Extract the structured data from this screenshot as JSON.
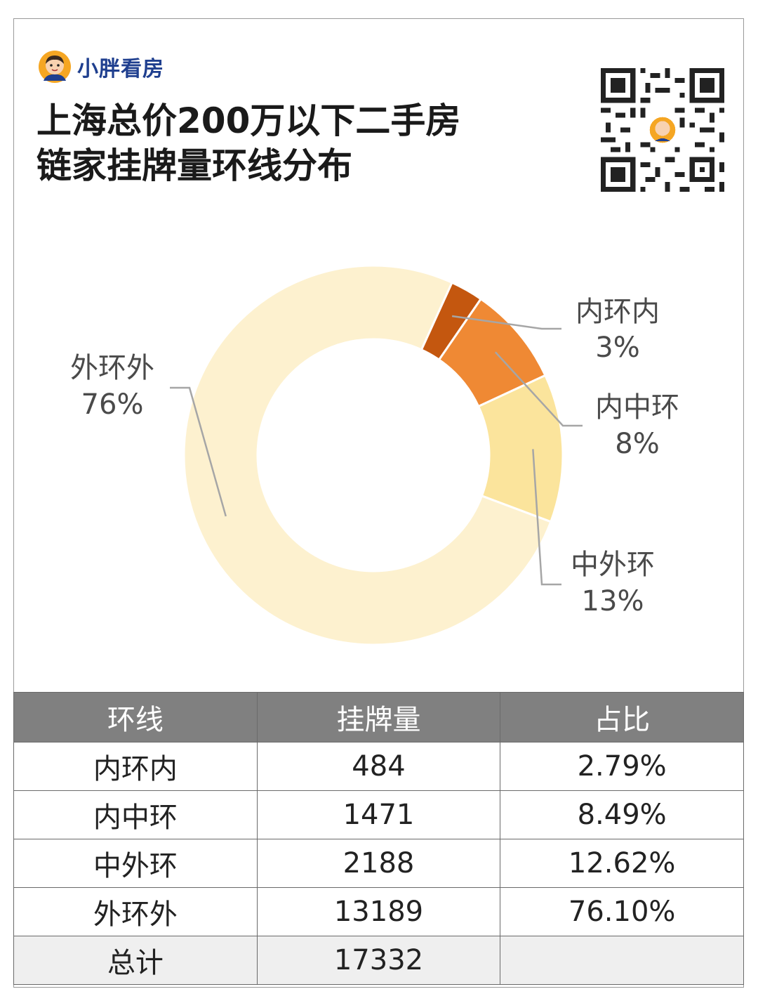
{
  "brand": {
    "name": "小胖看房"
  },
  "title": {
    "line1": "上海总价200万以下二手房",
    "line2": "链家挂牌量环线分布"
  },
  "colors": {
    "inner": "#c4570f",
    "inner_middle": "#ef8934",
    "middle_outer": "#fbe49c",
    "outer": "#fdf1cf"
  },
  "chart_data": {
    "type": "pie",
    "title": "上海总价200万以下二手房 链家挂牌量环线分布",
    "donut": true,
    "slices": [
      {
        "label": "内环内",
        "value": 484,
        "percent_label": "3%"
      },
      {
        "label": "内中环",
        "value": 1471,
        "percent_label": "8%"
      },
      {
        "label": "中外环",
        "value": 2188,
        "percent_label": "13%"
      },
      {
        "label": "外环外",
        "value": 13189,
        "percent_label": "76%"
      }
    ]
  },
  "table": {
    "headers": [
      "环线",
      "挂牌量",
      "占比"
    ],
    "rows": [
      [
        "内环内",
        "484",
        "2.79%"
      ],
      [
        "内中环",
        "1471",
        "8.49%"
      ],
      [
        "中外环",
        "2188",
        "12.62%"
      ],
      [
        "外环外",
        "13189",
        "76.10%"
      ]
    ],
    "total": [
      "总计",
      "17332",
      ""
    ]
  }
}
